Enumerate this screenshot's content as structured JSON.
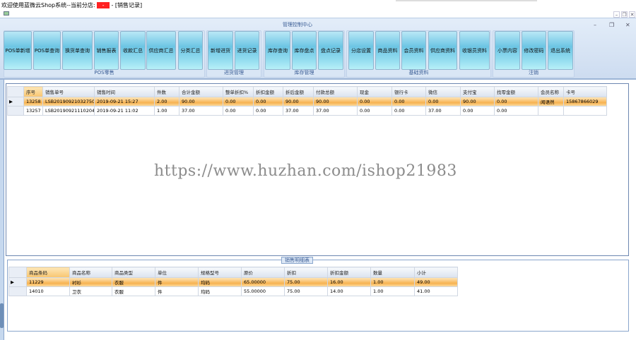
{
  "window": {
    "welcome": "欢迎使用蓝微云Shop系统--当前分店:",
    "branch": "-",
    "suffix": "- [销售记录]",
    "min": "–",
    "restore": "❐",
    "close": "✕"
  },
  "ribbon": {
    "title": "管理控制中心",
    "groups": [
      {
        "label": "POS零售",
        "buttons": [
          "POS单新增",
          "POS单查询",
          "换货单查询",
          "销售报表",
          "收款汇总",
          "供应商汇总",
          "分类汇总"
        ]
      },
      {
        "label": "进货管理",
        "buttons": [
          "新增进货",
          "进货记录"
        ]
      },
      {
        "label": "库存管理",
        "buttons": [
          "库存查询",
          "库存盘点",
          "盘点记录"
        ]
      },
      {
        "label": "基础资料",
        "buttons": [
          "分店设置",
          "商品资料",
          "会员资料",
          "供应商资料",
          "收银员资料"
        ]
      },
      {
        "label": "注销",
        "buttons": [
          "小票内容",
          "修改密码",
          "退出系统"
        ]
      }
    ]
  },
  "sales": {
    "columns": [
      "序号",
      "销售单号",
      "销售时间",
      "件数",
      "合计金额",
      "整单折扣%",
      "折扣金额",
      "折后金额",
      "付款总额",
      "现金",
      "银行卡",
      "微信",
      "支付宝",
      "找零金额",
      "会员名称",
      "卡号"
    ],
    "rows": [
      [
        "13258",
        "LSB20190921032750",
        "2019-09-21 15:27",
        "2.00",
        "90.00",
        "0.00",
        "0.00",
        "90.00",
        "90.00",
        "0.00",
        "0.00",
        "0.00",
        "90.00",
        "0.00",
        "闻语然",
        "15867866029"
      ],
      [
        "13257",
        "LSB20190921110204",
        "2019-09-21 11:02",
        "1.00",
        "37.00",
        "0.00",
        "0.00",
        "37.00",
        "37.00",
        "0.00",
        "0.00",
        "37.00",
        "0.00",
        "0.00",
        "",
        ""
      ]
    ],
    "selected": 0
  },
  "watermark": "https://www.huzhan.com/ishop21983",
  "detail": {
    "title": "销售明细表",
    "columns": [
      "商品条码",
      "商品名称",
      "商品类型",
      "单位",
      "规格型号",
      "原价",
      "折扣",
      "折扣金额",
      "数量",
      "小计"
    ],
    "rows": [
      [
        "11229",
        "衬衫",
        "衣服",
        "件",
        "均码",
        "65.00000",
        "75.00",
        "16.00",
        "1.00",
        "49.00"
      ],
      [
        "14010",
        "卫衣",
        "衣服",
        "件",
        "均码",
        "55.00000",
        "75.00",
        "14.00",
        "1.00",
        "41.00"
      ]
    ],
    "selected": 0
  }
}
